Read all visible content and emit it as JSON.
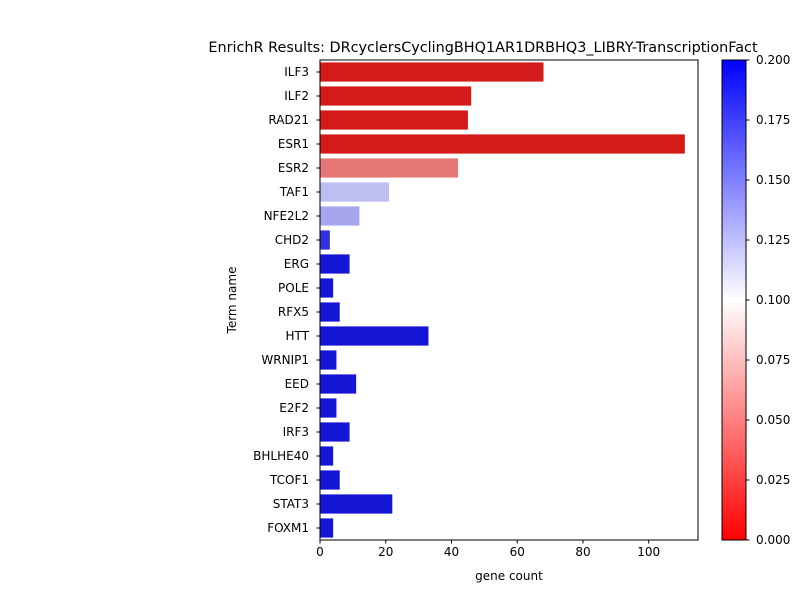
{
  "chart_data": {
    "type": "bar",
    "orientation": "horizontal",
    "title": "EnrichR Results: DRcyclersCyclingBHQ1AR1DRBHQ3_LIBRY-TranscriptionFact",
    "xlabel": "gene count",
    "ylabel": "Term name",
    "xlim": [
      0,
      115
    ],
    "x_ticks": [
      0,
      20,
      40,
      60,
      80,
      100
    ],
    "grid": false,
    "categories": [
      "ILF3",
      "ILF2",
      "RAD21",
      "ESR1",
      "ESR2",
      "TAF1",
      "NFE2L2",
      "CHD2",
      "ERG",
      "POLE",
      "RFX5",
      "HTT",
      "WRNIP1",
      "EED",
      "E2F2",
      "IRF3",
      "BHLHE40",
      "TCOF1",
      "STAT3",
      "FOXM1"
    ],
    "values": [
      68,
      46,
      45,
      111,
      42,
      21,
      12,
      3,
      9,
      4,
      6,
      33,
      5,
      11,
      5,
      9,
      4,
      6,
      22,
      4
    ],
    "color_values": [
      0.002,
      0.002,
      0.002,
      0.002,
      0.042,
      0.128,
      0.138,
      0.188,
      0.2,
      0.2,
      0.2,
      0.2,
      0.2,
      0.2,
      0.2,
      0.2,
      0.2,
      0.2,
      0.2,
      0.2
    ],
    "colorbar": {
      "colormap": "bwr_r",
      "range": [
        0.0,
        0.2
      ],
      "ticks": [
        "0.000",
        "0.025",
        "0.050",
        "0.075",
        "0.100",
        "0.125",
        "0.150",
        "0.175",
        "0.200"
      ],
      "colors": {
        "low": "#ff0000",
        "mid": "#ffffff",
        "high": "#0000ff"
      }
    }
  }
}
